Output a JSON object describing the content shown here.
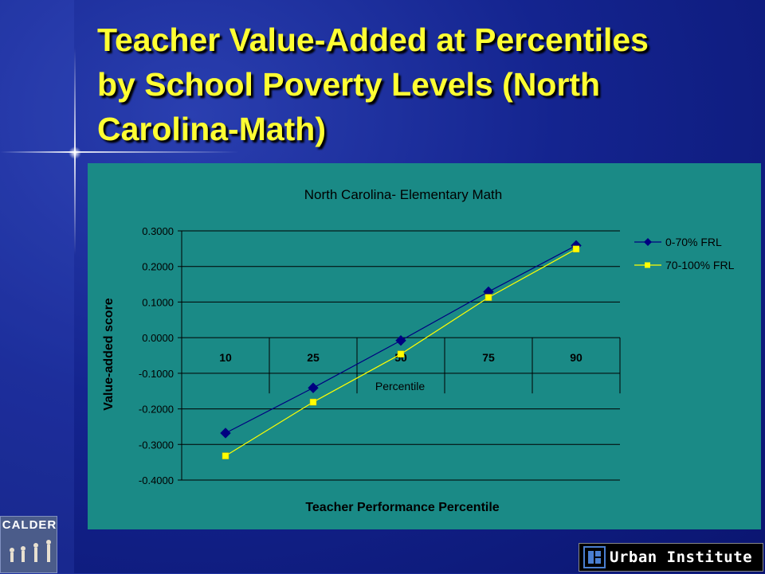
{
  "slide": {
    "title": "Teacher Value-Added at Percentiles by School Poverty Levels (North Carolina-Math)"
  },
  "logos": {
    "calder": "CALDER",
    "urban": "Urban Institute"
  },
  "colors": {
    "background": "#14248f",
    "title": "#ffff33",
    "plot_bg": "#1a8a86",
    "series1": "#000080",
    "series2": "#ffff00"
  },
  "chart_data": {
    "type": "line",
    "title": "North Carolina- Elementary Math",
    "xlabel": "Teacher Performance Percentile",
    "ylabel": "Value-added score",
    "inner_axis_label": "Percentile",
    "categories": [
      "10",
      "25",
      "50",
      "75",
      "90"
    ],
    "yticks": [
      "0.3000",
      "0.2000",
      "0.1000",
      "0.0000",
      "-0.1000",
      "-0.2000",
      "-0.3000",
      "-0.4000"
    ],
    "ylim": [
      -0.4,
      0.3
    ],
    "grid": true,
    "legend_position": "right",
    "series": [
      {
        "name": "0-70% FRL",
        "marker": "diamond",
        "color": "#000080",
        "values": [
          -0.268,
          -0.141,
          -0.008,
          0.129,
          0.259
        ]
      },
      {
        "name": "70-100% FRL",
        "marker": "square",
        "color": "#ffff00",
        "values": [
          -0.332,
          -0.181,
          -0.046,
          0.113,
          0.249
        ]
      }
    ]
  }
}
